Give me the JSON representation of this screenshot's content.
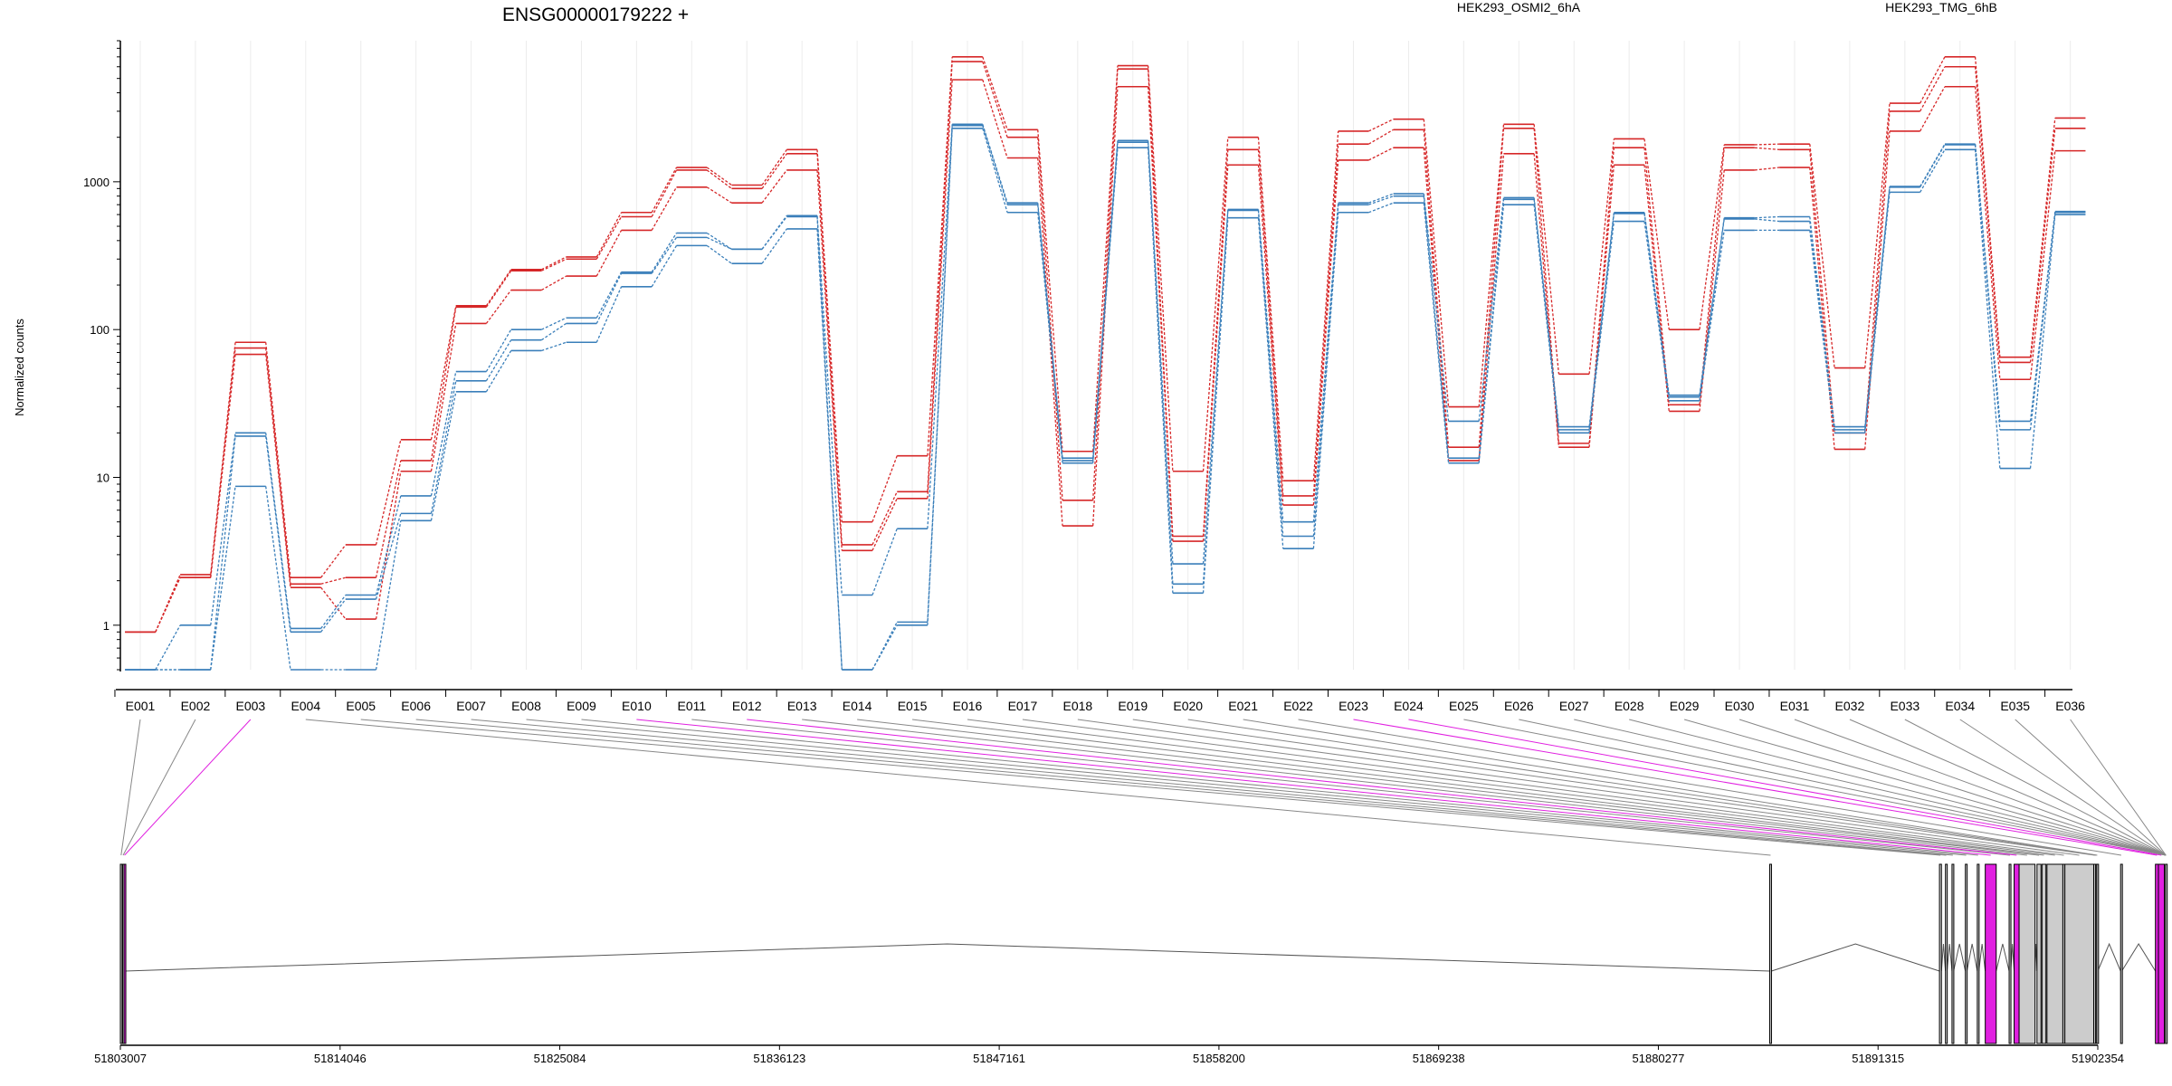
{
  "chart_data": {
    "type": "line",
    "title": "ENSG00000179222 +",
    "ylabel": "Normalized counts",
    "xlabel": "",
    "yscale": "log",
    "ylim": [
      0.5,
      9000
    ],
    "yticks": [
      1,
      10,
      100,
      1000
    ],
    "grid": true,
    "legend_placement": "top",
    "colors": {
      "osmi": "#d62728",
      "tmg": "#3a7fba",
      "highlight": "#e020e0",
      "intron": "#555555"
    },
    "exons": [
      "E001",
      "E002",
      "E003",
      "E004",
      "E005",
      "E006",
      "E007",
      "E008",
      "E009",
      "E010",
      "E011",
      "E012",
      "E013",
      "E014",
      "E015",
      "E016",
      "E017",
      "E018",
      "E019",
      "E020",
      "E021",
      "E022",
      "E023",
      "E024",
      "E025",
      "E026",
      "E027",
      "E028",
      "E029",
      "E030",
      "E031",
      "E032",
      "E033",
      "E034",
      "E035",
      "E036"
    ],
    "series": [
      {
        "name": "HEK293_OSMI2_6hA",
        "group": "osmi",
        "values": [
          0.9,
          2.2,
          82,
          2.1,
          3.5,
          18,
          145,
          255,
          310,
          620,
          1250,
          950,
          1650,
          5,
          14,
          7000,
          2250,
          15,
          6100,
          11,
          2000,
          9.5,
          2200,
          2650,
          30,
          2450,
          50,
          1950,
          100,
          1780,
          1800,
          55,
          3400,
          7000,
          65,
          2700
        ]
      },
      {
        "name": "",
        "group": "osmi",
        "values": [
          0.9,
          2.1,
          75,
          1.9,
          2.1,
          13,
          142,
          250,
          300,
          580,
          1200,
          900,
          1550,
          3.5,
          8,
          6500,
          2000,
          7,
          5800,
          4,
          1650,
          7.5,
          1800,
          2250,
          16,
          2300,
          17,
          1700,
          31,
          1700,
          1650,
          20,
          3000,
          6000,
          60,
          2300
        ]
      },
      {
        "name": "",
        "group": "osmi",
        "values": [
          0.9,
          2.1,
          68,
          1.8,
          1.1,
          11,
          110,
          185,
          230,
          470,
          920,
          720,
          1200,
          3.2,
          7.2,
          4900,
          1450,
          4.7,
          4400,
          3.7,
          1300,
          6.5,
          1400,
          1700,
          13,
          1550,
          16,
          1300,
          28,
          1200,
          1250,
          15.5,
          2200,
          4400,
          46,
          1620
        ]
      },
      {
        "name": "HEK293_TMG_6hB",
        "group": "tmg",
        "values": [
          0.5,
          1.0,
          20,
          0.95,
          1.6,
          7.5,
          52,
          100,
          120,
          245,
          450,
          350,
          590,
          1.6,
          4.5,
          2450,
          720,
          13.5,
          1900,
          2.6,
          650,
          5,
          720,
          830,
          24,
          780,
          22,
          620,
          36,
          570,
          580,
          22,
          930,
          1800,
          24,
          630
        ]
      },
      {
        "name": "",
        "group": "tmg",
        "values": [
          0.5,
          0.5,
          19,
          0.9,
          1.5,
          5.7,
          45,
          85,
          110,
          240,
          420,
          350,
          580,
          0.5,
          1.05,
          2400,
          700,
          13,
          1850,
          1.9,
          640,
          4,
          700,
          800,
          13.5,
          760,
          21,
          610,
          35,
          560,
          540,
          21,
          920,
          1780,
          21,
          620
        ]
      },
      {
        "name": "",
        "group": "tmg",
        "values": [
          0.5,
          0.5,
          8.7,
          0.5,
          0.5,
          5.1,
          38,
          72,
          82,
          195,
          370,
          280,
          480,
          0.5,
          1.0,
          2300,
          620,
          12.5,
          1700,
          1.65,
          570,
          3.3,
          620,
          720,
          12.5,
          700,
          20,
          540,
          33,
          470,
          470,
          20,
          850,
          1650,
          11.5,
          600
        ]
      }
    ],
    "genome_axis": {
      "ticks": [
        "51803007",
        "51814046",
        "51825084",
        "51836123",
        "51847161",
        "51858200",
        "51869238",
        "51880277",
        "51891315",
        "51902354"
      ],
      "start": 51803007,
      "end": 51902354
    },
    "gene_model": {
      "exons": [
        {
          "start": 51803007,
          "end": 51803080,
          "highlight": false
        },
        {
          "start": 51803120,
          "end": 51803170,
          "highlight": false
        },
        {
          "start": 51803190,
          "end": 51803240,
          "highlight": true
        },
        {
          "start": 51885870,
          "end": 51885960,
          "highlight": false
        },
        {
          "start": 51894400,
          "end": 51894500,
          "highlight": false
        },
        {
          "start": 51894700,
          "end": 51894780,
          "highlight": false
        },
        {
          "start": 51895030,
          "end": 51895110,
          "highlight": false
        },
        {
          "start": 51895700,
          "end": 51895780,
          "highlight": false
        },
        {
          "start": 51896300,
          "end": 51896380,
          "highlight": false
        },
        {
          "start": 51896700,
          "end": 51897250,
          "highlight": true
        },
        {
          "start": 51897900,
          "end": 51897980,
          "highlight": false
        },
        {
          "start": 51898150,
          "end": 51898400,
          "highlight": true
        },
        {
          "start": 51898400,
          "end": 51899200,
          "highlight": false
        },
        {
          "start": 51899300,
          "end": 51899500,
          "highlight": false
        },
        {
          "start": 51899550,
          "end": 51899750,
          "highlight": false
        },
        {
          "start": 51899800,
          "end": 51900600,
          "highlight": false
        },
        {
          "start": 51900600,
          "end": 51900700,
          "highlight": false
        },
        {
          "start": 51900700,
          "end": 51902150,
          "highlight": false
        },
        {
          "start": 51902150,
          "end": 51902250,
          "highlight": false
        },
        {
          "start": 51902250,
          "end": 51902300,
          "highlight": false
        },
        {
          "start": 51902300,
          "end": 51902354,
          "highlight": false
        },
        {
          "start": 51903500,
          "end": 51903560,
          "highlight": false
        },
        {
          "start": 51905250,
          "end": 51905400,
          "highlight": true
        },
        {
          "start": 51905400,
          "end": 51905700,
          "highlight": true
        },
        {
          "start": 51905750,
          "end": 51905800,
          "highlight": false
        }
      ]
    }
  }
}
